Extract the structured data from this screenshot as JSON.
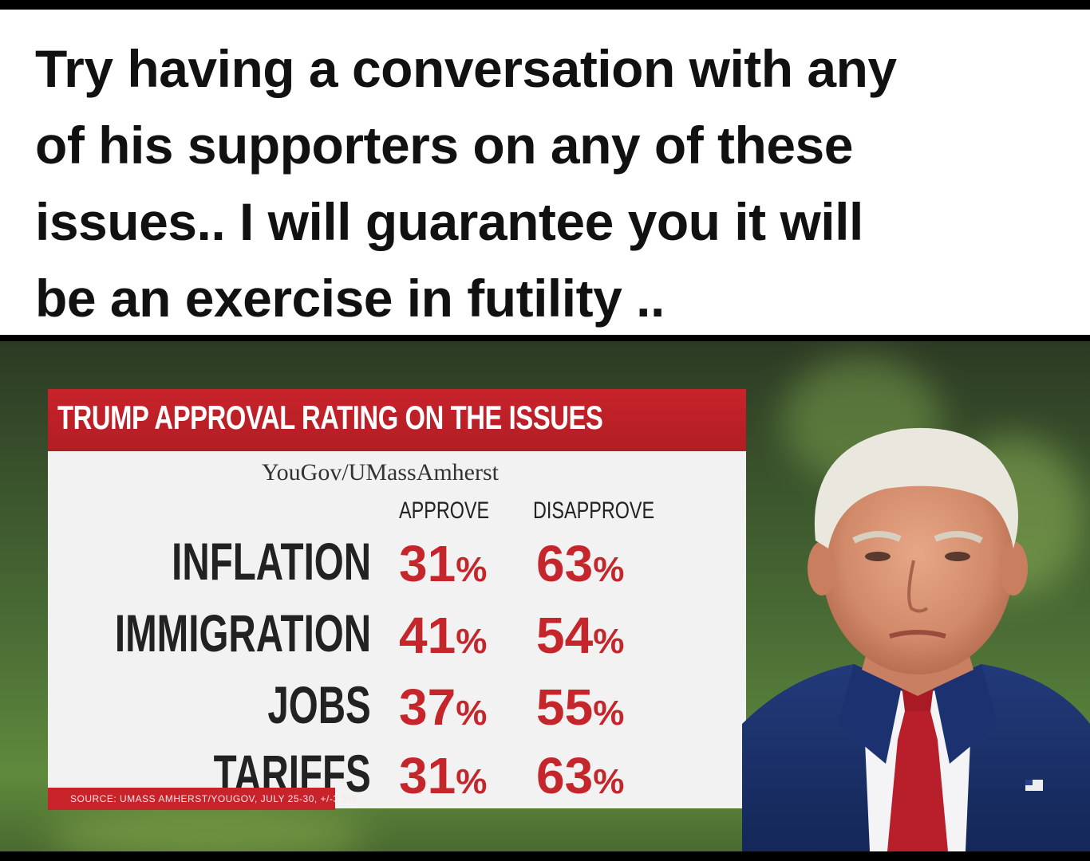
{
  "caption": {
    "lines": [
      "Try having a conversation with any",
      "of his supporters on any of these",
      "issues.. I will guarantee you it will",
      "be an exercise in futility .."
    ]
  },
  "graphic": {
    "title": "TRUMP APPROVAL RATING ON THE ISSUES",
    "subtitle": "YouGov/UMassAmherst",
    "columns": [
      "APPROVE",
      "DISAPPROVE"
    ],
    "rows": [
      {
        "issue": "INFLATION",
        "approve": "31",
        "disapprove": "63"
      },
      {
        "issue": "IMMIGRATION",
        "approve": "41",
        "disapprove": "54"
      },
      {
        "issue": "JOBS",
        "approve": "37",
        "disapprove": "55"
      },
      {
        "issue": "TARIFFS",
        "approve": "31",
        "disapprove": "63"
      }
    ],
    "percent_sign": "%",
    "source": "SOURCE: UMASS AMHERST/YOUGOV, JULY 25-30, +/-3.5%",
    "colors": {
      "accent_red": "#c5262c",
      "header_red": "#c8232b",
      "panel_bg": "#f2f2f2"
    }
  }
}
